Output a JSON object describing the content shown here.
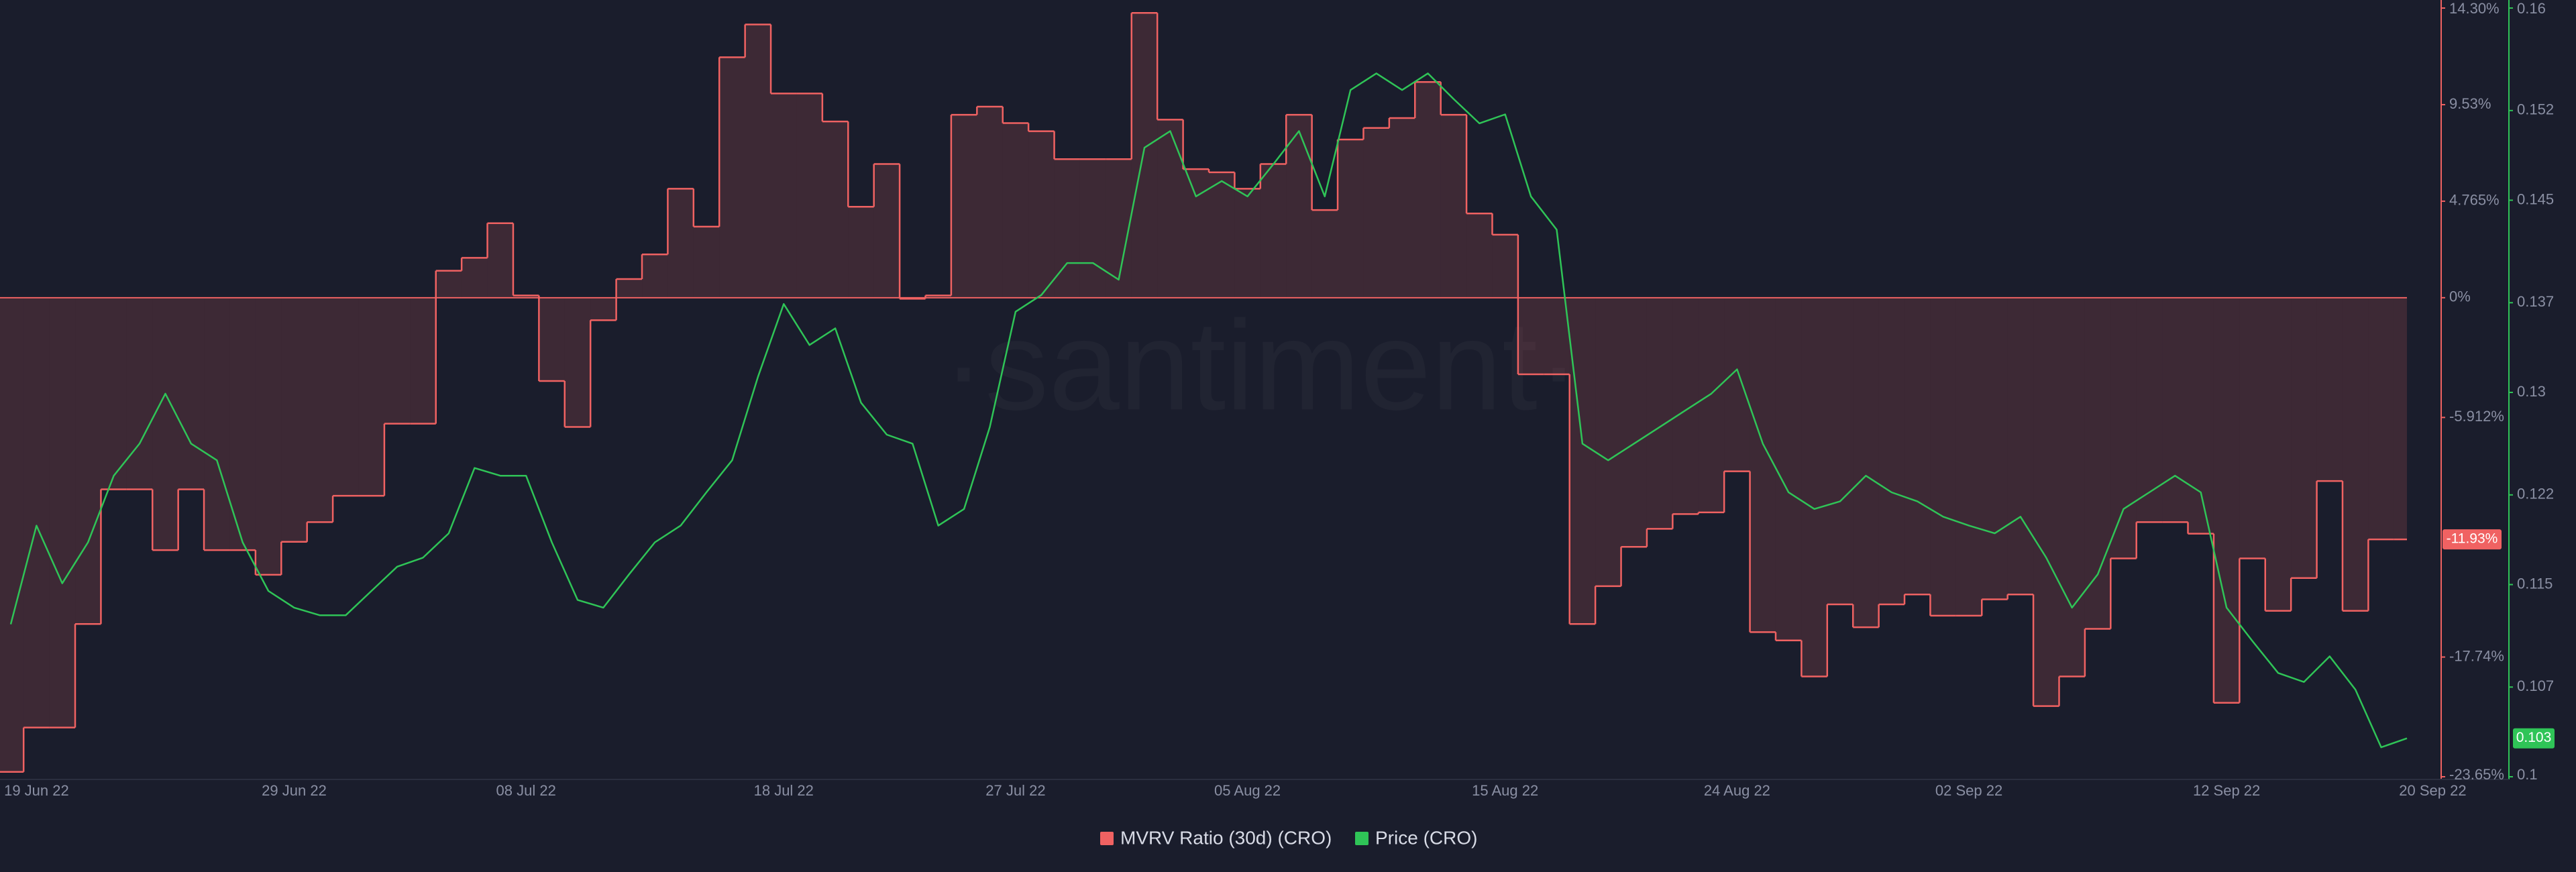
{
  "chart_data": {
    "type": "line",
    "watermark": "·santiment·",
    "x": [
      "2022-06-18",
      "2022-06-19",
      "2022-06-20",
      "2022-06-21",
      "2022-06-22",
      "2022-06-23",
      "2022-06-24",
      "2022-06-25",
      "2022-06-26",
      "2022-06-27",
      "2022-06-28",
      "2022-06-29",
      "2022-06-30",
      "2022-07-01",
      "2022-07-02",
      "2022-07-03",
      "2022-07-04",
      "2022-07-05",
      "2022-07-06",
      "2022-07-07",
      "2022-07-08",
      "2022-07-09",
      "2022-07-10",
      "2022-07-11",
      "2022-07-12",
      "2022-07-13",
      "2022-07-14",
      "2022-07-15",
      "2022-07-16",
      "2022-07-17",
      "2022-07-18",
      "2022-07-19",
      "2022-07-20",
      "2022-07-21",
      "2022-07-22",
      "2022-07-23",
      "2022-07-24",
      "2022-07-25",
      "2022-07-26",
      "2022-07-27",
      "2022-07-28",
      "2022-07-29",
      "2022-07-30",
      "2022-07-31",
      "2022-08-01",
      "2022-08-02",
      "2022-08-03",
      "2022-08-04",
      "2022-08-05",
      "2022-08-06",
      "2022-08-07",
      "2022-08-08",
      "2022-08-09",
      "2022-08-10",
      "2022-08-11",
      "2022-08-12",
      "2022-08-13",
      "2022-08-14",
      "2022-08-15",
      "2022-08-16",
      "2022-08-17",
      "2022-08-18",
      "2022-08-19",
      "2022-08-20",
      "2022-08-21",
      "2022-08-22",
      "2022-08-23",
      "2022-08-24",
      "2022-08-25",
      "2022-08-26",
      "2022-08-27",
      "2022-08-28",
      "2022-08-29",
      "2022-08-30",
      "2022-08-31",
      "2022-09-01",
      "2022-09-02",
      "2022-09-03",
      "2022-09-04",
      "2022-09-05",
      "2022-09-06",
      "2022-09-07",
      "2022-09-08",
      "2022-09-09",
      "2022-09-10",
      "2022-09-11",
      "2022-09-12",
      "2022-09-13",
      "2022-09-14",
      "2022-09-15",
      "2022-09-16",
      "2022-09-17",
      "2022-09-18",
      "2022-09-19"
    ],
    "xlim": [
      "2022-06-18",
      "2022-09-19"
    ],
    "xticks": [
      {
        "value": "2022-06-19",
        "label": "19 Jun 22"
      },
      {
        "value": "2022-06-29",
        "label": "29 Jun 22"
      },
      {
        "value": "2022-07-08",
        "label": "08 Jul 22"
      },
      {
        "value": "2022-07-18",
        "label": "18 Jul 22"
      },
      {
        "value": "2022-07-27",
        "label": "27 Jul 22"
      },
      {
        "value": "2022-08-05",
        "label": "05 Aug 22"
      },
      {
        "value": "2022-08-15",
        "label": "15 Aug 22"
      },
      {
        "value": "2022-08-24",
        "label": "24 Aug 22"
      },
      {
        "value": "2022-09-02",
        "label": "02 Sep 22"
      },
      {
        "value": "2022-09-12",
        "label": "12 Sep 22"
      },
      {
        "value": "2022-09-20",
        "label": "20 Sep 22"
      }
    ],
    "ylim": [
      -23.65,
      14.3
    ],
    "yticks": [
      {
        "value": 14.3,
        "label": "14.30%"
      },
      {
        "value": 9.53,
        "label": "9.53%"
      },
      {
        "value": 4.765,
        "label": "4.765%"
      },
      {
        "value": 0,
        "label": "0%"
      },
      {
        "value": -5.912,
        "label": "-5.912%"
      },
      {
        "value": -17.74,
        "label": "-17.74%"
      },
      {
        "value": -23.65,
        "label": "-23.65%"
      }
    ],
    "y2lim": [
      0.1,
      0.16
    ],
    "y2ticks": [
      0.16,
      0.152,
      0.145,
      0.137,
      0.13,
      0.122,
      0.115,
      0.107,
      0.1
    ],
    "series": [
      {
        "name": "MVRV Ratio (30d) (CRO)",
        "color": "#f06262",
        "style": "step",
        "area": true,
        "last_label": "-11.93%",
        "values": [
          -23.41,
          -21.22,
          -21.22,
          -16.11,
          -9.46,
          -9.46,
          -12.46,
          -9.46,
          -12.46,
          -12.46,
          -13.68,
          -12.05,
          -11.08,
          -9.78,
          -9.78,
          -6.22,
          -6.22,
          1.33,
          1.97,
          3.68,
          0.11,
          -4.11,
          -6.38,
          -1.11,
          0.92,
          2.14,
          5.38,
          3.51,
          11.87,
          13.49,
          10.08,
          10.08,
          8.7,
          4.49,
          6.6,
          -0.05,
          0.11,
          9.03,
          9.43,
          8.62,
          8.22,
          6.84,
          6.84,
          6.84,
          14.06,
          8.79,
          6.35,
          6.19,
          5.38,
          6.6,
          9.03,
          4.33,
          7.81,
          8.38,
          8.87,
          10.65,
          9.03,
          4.16,
          3.11,
          -3.78,
          -3.78,
          -16.11,
          -14.24,
          -12.3,
          -11.41,
          -10.68,
          -10.6,
          -8.57,
          -16.51,
          -16.92,
          -18.7,
          -15.14,
          -16.27,
          -15.14,
          -14.65,
          -15.7,
          -15.7,
          -14.89,
          -14.65,
          -20.16,
          -18.7,
          -16.35,
          -12.87,
          -11.08,
          -11.08,
          -11.65,
          -20.0,
          -12.87,
          -15.46,
          -13.84,
          -9.05,
          -15.46,
          -11.93,
          -11.93
        ]
      },
      {
        "name": "Price (CRO)",
        "color": "#2fc457",
        "style": "line",
        "axis": "y2",
        "values": [
          0.1119,
          0.1196,
          0.1151,
          0.1183,
          0.1235,
          0.126,
          0.1299,
          0.126,
          0.1247,
          0.1183,
          0.1145,
          0.1132,
          0.1126,
          0.1126,
          0.1145,
          0.1164,
          0.1171,
          0.119,
          0.1241,
          0.1235,
          0.1235,
          0.1183,
          0.1138,
          0.1132,
          0.1158,
          0.1183,
          0.1196,
          0.1222,
          0.1247,
          0.1312,
          0.1369,
          0.1337,
          0.135,
          0.1292,
          0.1267,
          0.126,
          0.1196,
          0.1209,
          0.1273,
          0.1363,
          0.1376,
          0.1401,
          0.1401,
          0.1388,
          0.1491,
          0.1504,
          0.1453,
          0.1465,
          0.1453,
          0.1478,
          0.1504,
          0.1453,
          0.1536,
          0.1549,
          0.1536,
          0.1549,
          0.1529,
          0.151,
          0.1517,
          0.1453,
          0.1427,
          0.126,
          0.1247,
          0.126,
          0.1273,
          0.1286,
          0.1299,
          0.1318,
          0.126,
          0.1222,
          0.1209,
          0.1215,
          0.1235,
          0.1222,
          0.1215,
          0.1203,
          0.1196,
          0.119,
          0.1203,
          0.1171,
          0.1132,
          0.1158,
          0.1209,
          0.1222,
          0.1235,
          0.1222,
          0.1132,
          0.1106,
          0.1081,
          0.1074,
          0.1094,
          0.1068,
          0.1023,
          0.103
        ]
      }
    ]
  }
}
